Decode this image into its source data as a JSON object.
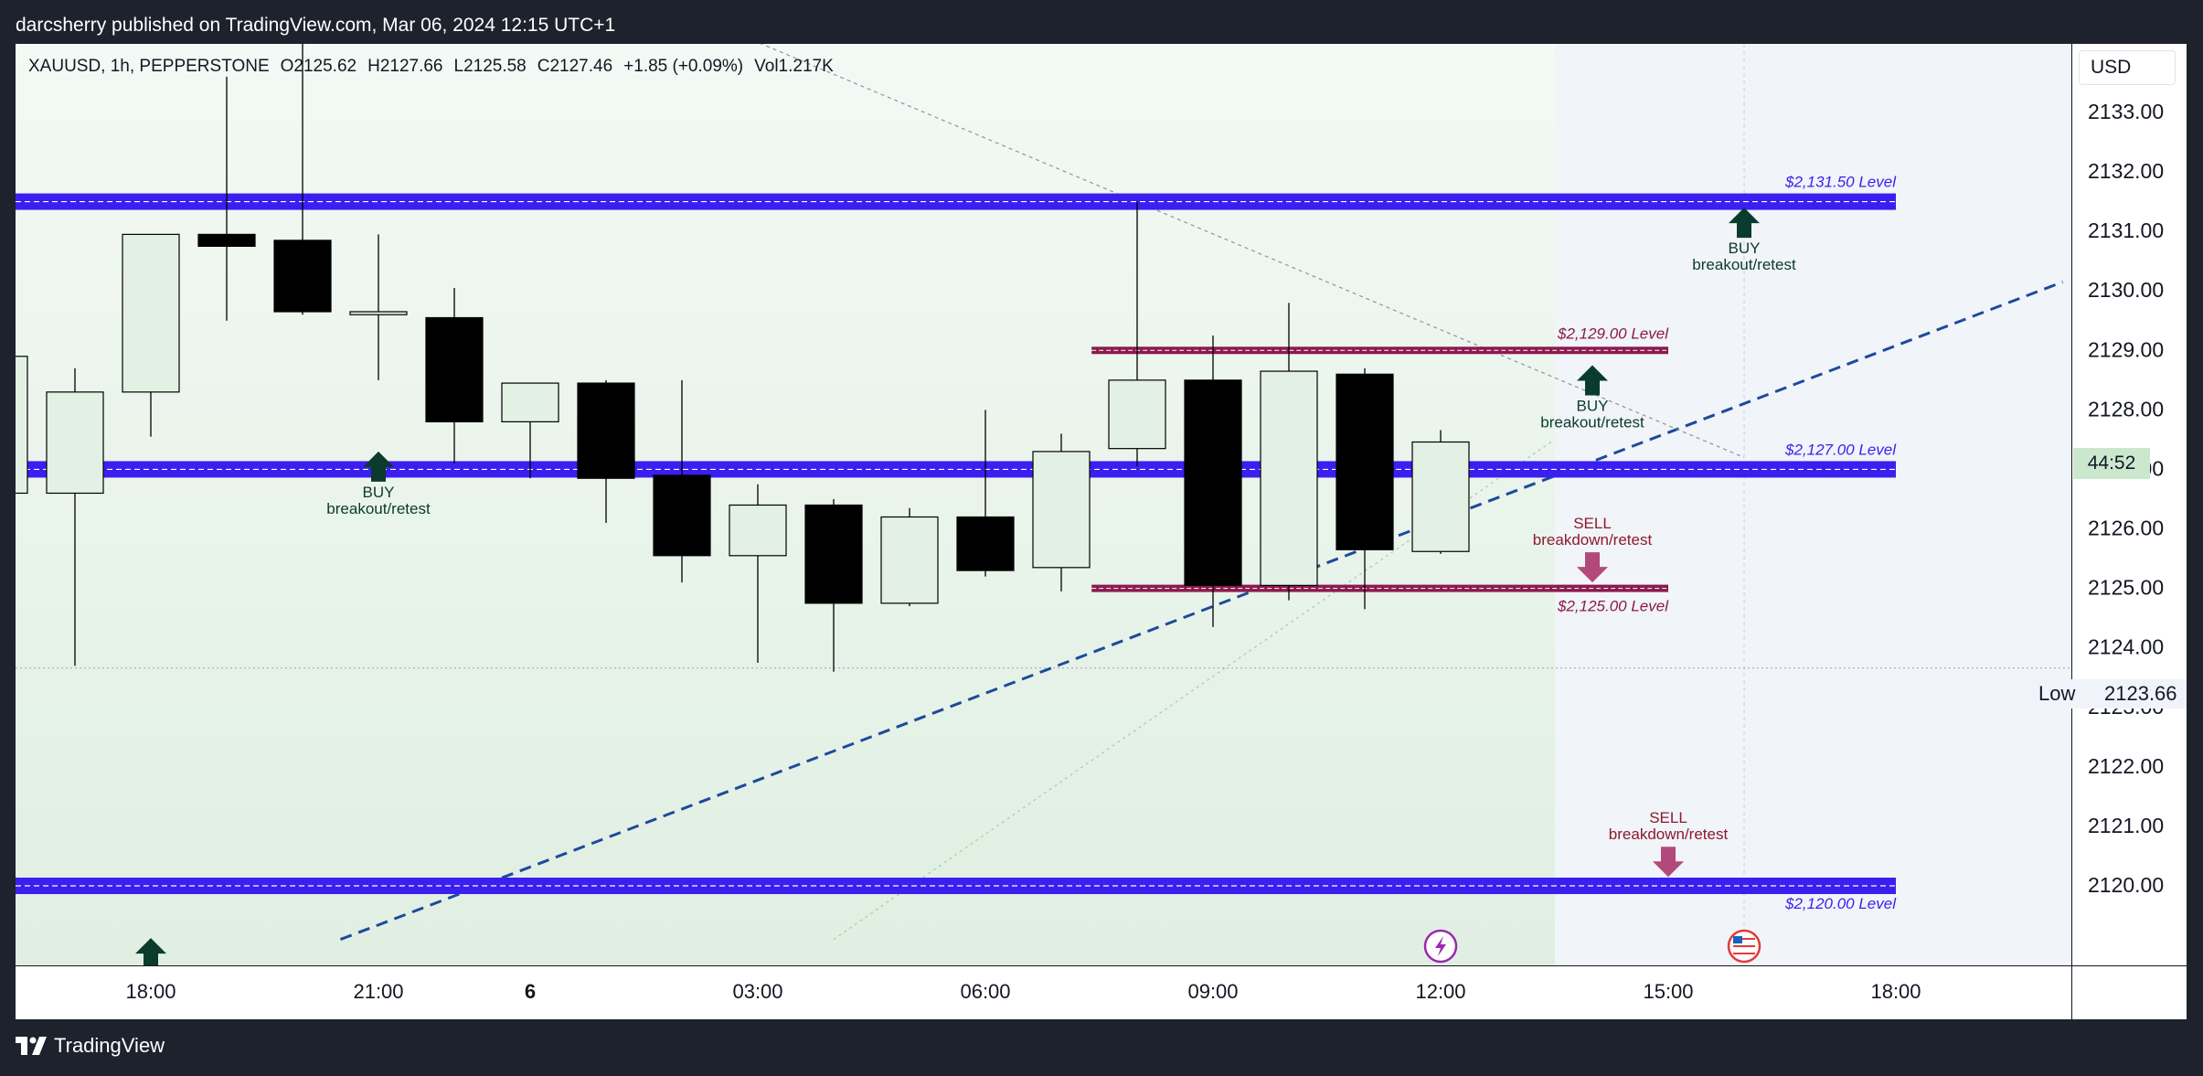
{
  "header": {
    "publisher_text": "darcsherry published on TradingView.com, Mar 06, 2024 12:15 UTC+1"
  },
  "legend": {
    "symbol": "XAUUSD, 1h, PEPPERSTONE",
    "open": "O2125.62",
    "high": "H2127.66",
    "low": "L2125.58",
    "close": "C2127.46",
    "change": "+1.85 (+0.09%)",
    "volume": "Vol1.217K"
  },
  "price_axis": {
    "currency": "USD",
    "countdown": "44:52",
    "low_label": "Low",
    "low_value": "2123.66"
  },
  "footer": {
    "brand": "TradingView"
  },
  "colors": {
    "bull_body": "#e3f1e4",
    "bear_body": "#000000",
    "blue_level": "#3b1ff0",
    "maroon_level": "#8b1a4e",
    "buy_arrow": "#0b3b2c",
    "sell_arrow": "#b2497a",
    "trend_line": "#1d4a9c"
  },
  "chart_data": {
    "type": "candlestick",
    "symbol": "XAUUSD",
    "interval": "1h",
    "ylim": [
      2119.1,
      2134.55
    ],
    "y_ticks": [
      2120,
      2121,
      2122,
      2123,
      2124,
      2125,
      2126,
      2127,
      2128,
      2129,
      2130,
      2131,
      2132,
      2133
    ],
    "y_tick_labels": [
      "2120.00",
      "2121.00",
      "2122.00",
      "2123.00",
      "2124.00",
      "2125.00",
      "2126.00",
      "2127.00",
      "2128.00",
      "2129.00",
      "2130.00",
      "2131.00",
      "2132.00",
      "2133.00"
    ],
    "x_ticks": [
      {
        "label": "18:00",
        "hour": 0,
        "bold": false
      },
      {
        "label": "21:00",
        "hour": 3,
        "bold": false
      },
      {
        "label": "6",
        "hour": 5,
        "bold": true
      },
      {
        "label": "03:00",
        "hour": 8,
        "bold": false
      },
      {
        "label": "06:00",
        "hour": 11,
        "bold": false
      },
      {
        "label": "09:00",
        "hour": 14,
        "bold": false
      },
      {
        "label": "12:00",
        "hour": 17,
        "bold": false
      },
      {
        "label": "15:00",
        "hour": 20,
        "bold": false
      },
      {
        "label": "18:00",
        "hour": 23,
        "bold": false
      }
    ],
    "candles": [
      {
        "hour": -2,
        "open": 2126.6,
        "high": 2129.5,
        "low": 2125.8,
        "close": 2128.9
      },
      {
        "hour": -1,
        "open": 2126.6,
        "high": 2128.7,
        "low": 2123.7,
        "close": 2128.3
      },
      {
        "hour": 0,
        "open": 2128.3,
        "high": 2130.95,
        "low": 2127.55,
        "close": 2130.95
      },
      {
        "hour": 1,
        "open": 2130.95,
        "high": 2133.6,
        "low": 2129.5,
        "close": 2130.75
      },
      {
        "hour": 2,
        "open": 2130.85,
        "high": 2134.5,
        "low": 2129.6,
        "close": 2129.65
      },
      {
        "hour": 3,
        "open": 2129.6,
        "high": 2130.95,
        "low": 2128.5,
        "close": 2129.65
      },
      {
        "hour": 4,
        "open": 2129.55,
        "high": 2130.05,
        "low": 2127.1,
        "close": 2127.8
      },
      {
        "hour": 5,
        "open": 2127.8,
        "high": 2128.45,
        "low": 2126.85,
        "close": 2128.45
      },
      {
        "hour": 6,
        "open": 2128.45,
        "high": 2128.5,
        "low": 2126.1,
        "close": 2126.85
      },
      {
        "hour": 7,
        "open": 2126.9,
        "high": 2128.5,
        "low": 2125.1,
        "close": 2125.55
      },
      {
        "hour": 8,
        "open": 2125.55,
        "high": 2126.75,
        "low": 2123.75,
        "close": 2126.4
      },
      {
        "hour": 9,
        "open": 2126.4,
        "high": 2126.5,
        "low": 2123.6,
        "close": 2124.75
      },
      {
        "hour": 10,
        "open": 2124.75,
        "high": 2126.35,
        "low": 2124.7,
        "close": 2126.2
      },
      {
        "hour": 11,
        "open": 2126.2,
        "high": 2128.0,
        "low": 2125.2,
        "close": 2125.3
      },
      {
        "hour": 12,
        "open": 2125.35,
        "high": 2127.6,
        "low": 2124.95,
        "close": 2127.3
      },
      {
        "hour": 13,
        "open": 2127.35,
        "high": 2131.5,
        "low": 2127.05,
        "close": 2128.5
      },
      {
        "hour": 14,
        "open": 2128.5,
        "high": 2129.25,
        "low": 2124.35,
        "close": 2125.05
      },
      {
        "hour": 15,
        "open": 2125.05,
        "high": 2129.8,
        "low": 2124.8,
        "close": 2128.65
      },
      {
        "hour": 16,
        "open": 2128.6,
        "high": 2128.7,
        "low": 2124.65,
        "close": 2125.65
      },
      {
        "hour": 17,
        "open": 2125.62,
        "high": 2127.66,
        "low": 2125.58,
        "close": 2127.46
      }
    ],
    "levels": [
      {
        "price": 2131.5,
        "label": "$2,131.50 Level",
        "style": "blue",
        "from_hour": -3,
        "to_hour": 23
      },
      {
        "price": 2127.0,
        "label": "$2,127.00 Level",
        "style": "blue",
        "from_hour": -3,
        "to_hour": 23
      },
      {
        "price": 2120.0,
        "label": "$2,120.00 Level",
        "style": "blue",
        "from_hour": -3,
        "to_hour": 23
      },
      {
        "price": 2129.0,
        "label": "$2,129.00 Level",
        "style": "maroon",
        "from_hour": 12.4,
        "to_hour": 20
      },
      {
        "price": 2125.0,
        "label": "$2,125.00 Level",
        "style": "maroon",
        "from_hour": 12.4,
        "to_hour": 20
      }
    ],
    "annotations": [
      {
        "kind": "buy",
        "hour": 3,
        "price": 2127.3,
        "title": "BUY",
        "subtitle": "breakout/retest"
      },
      {
        "kind": "buy",
        "hour": 19,
        "price": 2128.75,
        "title": "BUY",
        "subtitle": "breakout/retest"
      },
      {
        "kind": "buy",
        "hour": 21,
        "price": 2131.4,
        "title": "BUY",
        "subtitle": "breakout/retest"
      },
      {
        "kind": "sell",
        "hour": 19,
        "price": 2125.1,
        "title": "SELL",
        "subtitle": "breakdown/retest"
      },
      {
        "kind": "sell",
        "hour": 20,
        "price": 2120.15,
        "title": "SELL",
        "subtitle": "breakdown/retest"
      },
      {
        "kind": "buy-arrow-only",
        "hour": 0,
        "price": 2119.2
      }
    ],
    "trend_lines": [
      {
        "style": "dashed-blue",
        "from": {
          "hour": 2.5,
          "price": 2119.1
        },
        "to": {
          "hour": 25.2,
          "price": 2130.15
        }
      },
      {
        "style": "dotted-gray",
        "from": {
          "hour": 7.4,
          "price": 2134.5
        },
        "to": {
          "hour": 21.0,
          "price": 2127.2
        }
      },
      {
        "style": "dotted-green",
        "from": {
          "hour": 9.0,
          "price": 2119.1
        },
        "to": {
          "hour": 18.5,
          "price": 2127.5
        }
      }
    ],
    "low_line_price": 2123.66,
    "session_shade_end_hour": 18,
    "current_time_hour": 21,
    "event_icons": [
      {
        "hour": 17,
        "icon": "lightning-icon"
      },
      {
        "hour": 21,
        "icon": "us-flag-icon"
      }
    ]
  }
}
